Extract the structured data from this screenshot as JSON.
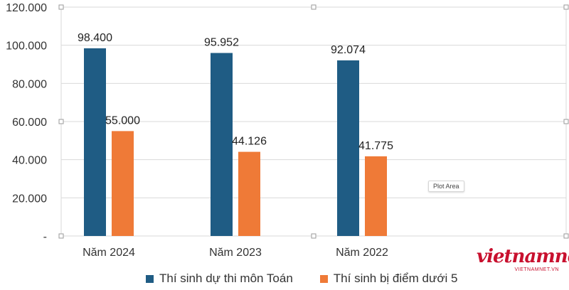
{
  "chart_data": {
    "type": "bar",
    "categories": [
      "Năm 2024",
      "Năm 2023",
      "Năm 2022"
    ],
    "series": [
      {
        "name": "Thí sinh dự thi môn Toán",
        "values": [
          98400,
          95952,
          92074
        ],
        "labels": [
          "98.400",
          "95.952",
          "92.074"
        ],
        "color": "#1f5c84"
      },
      {
        "name": "Thí sinh bị điểm dưới 5",
        "values": [
          55000,
          44126,
          41775
        ],
        "labels": [
          "55.000",
          "44.126",
          "41.775"
        ],
        "color": "#ef7a37"
      }
    ],
    "ylim": [
      0,
      120000
    ],
    "yticks": [
      0,
      20000,
      40000,
      60000,
      80000,
      100000,
      120000
    ],
    "ytick_labels": [
      "-",
      "20.000",
      "40.000",
      "60.000",
      "80.000",
      "100.000",
      "120.000"
    ],
    "grid": true,
    "legend_position": "bottom",
    "title": "",
    "xlabel": "",
    "ylabel": ""
  },
  "tooltip": "Plot Area",
  "logo": {
    "main": "vietnamnet",
    "sub": "VIETNAMNET.VN"
  }
}
